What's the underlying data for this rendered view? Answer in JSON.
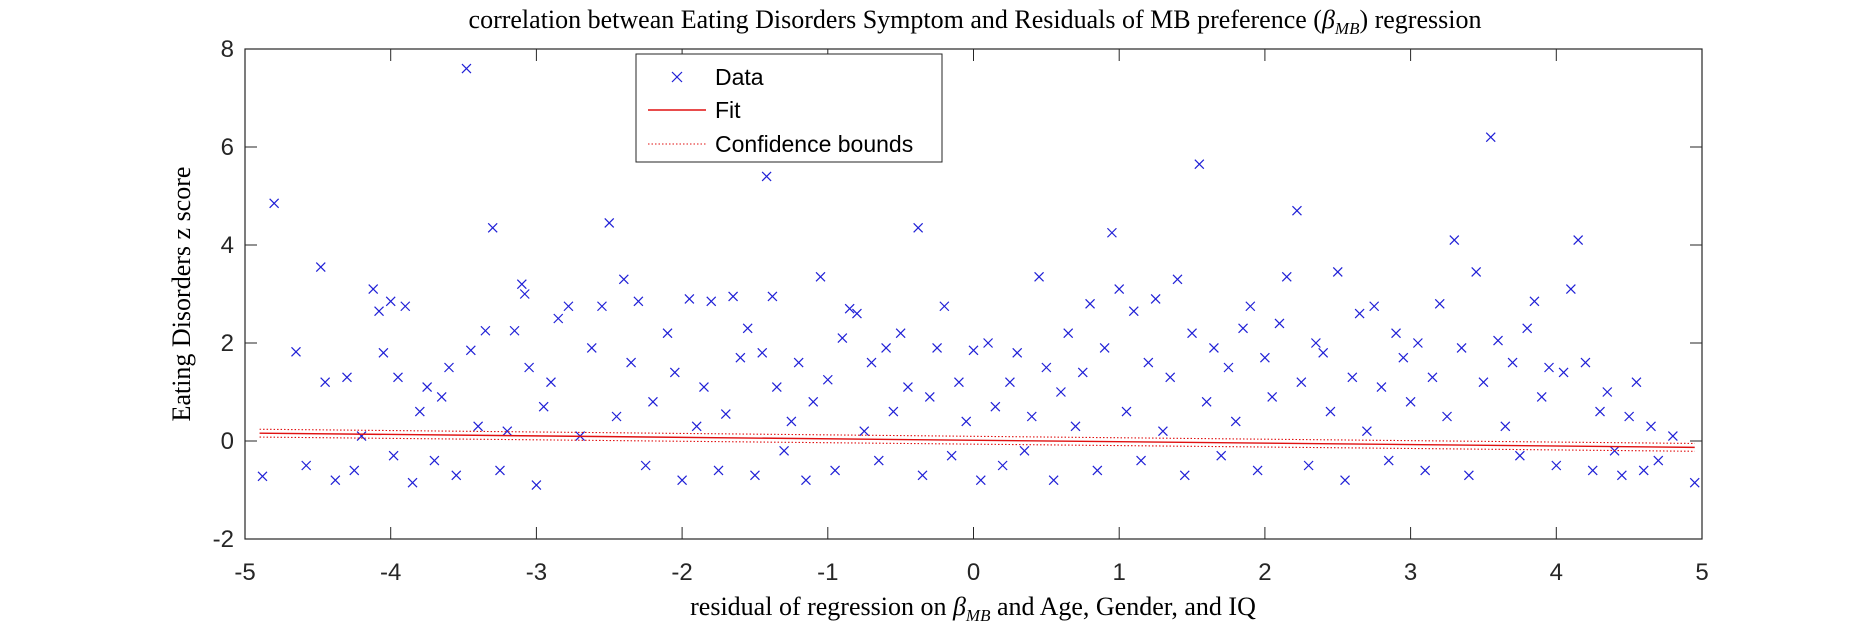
{
  "chart_data": {
    "type": "scatter",
    "title": "correlation betwean Eating Disorders Symptom and Residuals of MB preference (β_MB) regression",
    "title_parts": {
      "before": "correlation betwean Eating Disorders Symptom and Residuals of MB preference (",
      "symbol": "β",
      "subscript": "MB",
      "after": ") regression"
    },
    "xlabel": "residual of regression on β_MB and Age, Gender, and IQ",
    "xlabel_parts": {
      "before": "residual of regression on ",
      "symbol": "β",
      "subscript": "MB",
      "after": " and Age, Gender, and IQ"
    },
    "ylabel": "Eating Disorders z score",
    "xlim": [
      -5,
      5
    ],
    "ylim": [
      -2,
      8
    ],
    "xticks": [
      -5,
      -4,
      -3,
      -2,
      -1,
      0,
      1,
      2,
      3,
      4,
      5
    ],
    "yticks": [
      -2,
      0,
      2,
      4,
      6,
      8
    ],
    "grid": false,
    "legend_position": "top-center",
    "colors": {
      "data": "#1f1fd6",
      "fit": "#e01010",
      "bounds": "#e01010"
    },
    "series": [
      {
        "name": "Data",
        "marker": "x",
        "points": [
          [
            -4.88,
            -0.72
          ],
          [
            -4.8,
            4.85
          ],
          [
            -4.65,
            1.82
          ],
          [
            -4.58,
            -0.5
          ],
          [
            -4.48,
            3.55
          ],
          [
            -4.45,
            1.2
          ],
          [
            -4.38,
            -0.8
          ],
          [
            -4.3,
            1.3
          ],
          [
            -4.25,
            -0.6
          ],
          [
            -4.2,
            0.1
          ],
          [
            -4.12,
            3.1
          ],
          [
            -4.08,
            2.65
          ],
          [
            -4.05,
            1.8
          ],
          [
            -4.0,
            2.85
          ],
          [
            -3.98,
            -0.3
          ],
          [
            -3.95,
            1.3
          ],
          [
            -3.9,
            2.75
          ],
          [
            -3.85,
            -0.85
          ],
          [
            -3.8,
            0.6
          ],
          [
            -3.75,
            1.1
          ],
          [
            -3.7,
            -0.4
          ],
          [
            -3.65,
            0.9
          ],
          [
            -3.6,
            1.5
          ],
          [
            -3.55,
            -0.7
          ],
          [
            -3.48,
            7.6
          ],
          [
            -3.45,
            1.85
          ],
          [
            -3.4,
            0.3
          ],
          [
            -3.35,
            2.25
          ],
          [
            -3.3,
            4.35
          ],
          [
            -3.25,
            -0.6
          ],
          [
            -3.2,
            0.2
          ],
          [
            -3.15,
            2.25
          ],
          [
            -3.1,
            3.2
          ],
          [
            -3.08,
            3.0
          ],
          [
            -3.05,
            1.5
          ],
          [
            -3.0,
            -0.9
          ],
          [
            -2.95,
            0.7
          ],
          [
            -2.9,
            1.2
          ],
          [
            -2.85,
            2.5
          ],
          [
            -2.78,
            2.75
          ],
          [
            -2.7,
            0.1
          ],
          [
            -2.62,
            1.9
          ],
          [
            -2.55,
            2.75
          ],
          [
            -2.5,
            4.45
          ],
          [
            -2.45,
            0.5
          ],
          [
            -2.4,
            3.3
          ],
          [
            -2.35,
            1.6
          ],
          [
            -2.3,
            2.85
          ],
          [
            -2.25,
            -0.5
          ],
          [
            -2.2,
            0.8
          ],
          [
            -2.1,
            2.2
          ],
          [
            -2.05,
            1.4
          ],
          [
            -2.0,
            -0.8
          ],
          [
            -1.95,
            2.9
          ],
          [
            -1.9,
            0.3
          ],
          [
            -1.85,
            1.1
          ],
          [
            -1.8,
            2.85
          ],
          [
            -1.75,
            -0.6
          ],
          [
            -1.7,
            0.55
          ],
          [
            -1.65,
            2.95
          ],
          [
            -1.6,
            1.7
          ],
          [
            -1.55,
            2.3
          ],
          [
            -1.5,
            -0.7
          ],
          [
            -1.45,
            1.8
          ],
          [
            -1.42,
            5.4
          ],
          [
            -1.38,
            2.95
          ],
          [
            -1.35,
            1.1
          ],
          [
            -1.3,
            -0.2
          ],
          [
            -1.25,
            0.4
          ],
          [
            -1.2,
            1.6
          ],
          [
            -1.15,
            -0.8
          ],
          [
            -1.1,
            0.8
          ],
          [
            -1.05,
            3.35
          ],
          [
            -1.0,
            1.25
          ],
          [
            -0.95,
            -0.6
          ],
          [
            -0.9,
            2.1
          ],
          [
            -0.85,
            2.7
          ],
          [
            -0.8,
            2.6
          ],
          [
            -0.75,
            0.2
          ],
          [
            -0.7,
            1.6
          ],
          [
            -0.65,
            -0.4
          ],
          [
            -0.6,
            1.9
          ],
          [
            -0.55,
            0.6
          ],
          [
            -0.5,
            2.2
          ],
          [
            -0.45,
            1.1
          ],
          [
            -0.38,
            4.35
          ],
          [
            -0.35,
            -0.7
          ],
          [
            -0.3,
            0.9
          ],
          [
            -0.25,
            1.9
          ],
          [
            -0.2,
            2.75
          ],
          [
            -0.15,
            -0.3
          ],
          [
            -0.1,
            1.2
          ],
          [
            -0.05,
            0.4
          ],
          [
            0.0,
            1.85
          ],
          [
            0.05,
            -0.8
          ],
          [
            0.1,
            2.0
          ],
          [
            0.15,
            0.7
          ],
          [
            0.2,
            -0.5
          ],
          [
            0.25,
            1.2
          ],
          [
            0.3,
            1.8
          ],
          [
            0.35,
            -0.2
          ],
          [
            0.4,
            0.5
          ],
          [
            0.45,
            3.35
          ],
          [
            0.5,
            1.5
          ],
          [
            0.55,
            -0.8
          ],
          [
            0.6,
            1.0
          ],
          [
            0.65,
            2.2
          ],
          [
            0.7,
            0.3
          ],
          [
            0.75,
            1.4
          ],
          [
            0.8,
            2.8
          ],
          [
            0.85,
            -0.6
          ],
          [
            0.9,
            1.9
          ],
          [
            0.95,
            4.25
          ],
          [
            1.0,
            3.1
          ],
          [
            1.05,
            0.6
          ],
          [
            1.1,
            2.65
          ],
          [
            1.15,
            -0.4
          ],
          [
            1.2,
            1.6
          ],
          [
            1.25,
            2.9
          ],
          [
            1.3,
            0.2
          ],
          [
            1.35,
            1.3
          ],
          [
            1.4,
            3.3
          ],
          [
            1.45,
            -0.7
          ],
          [
            1.5,
            2.2
          ],
          [
            1.55,
            5.65
          ],
          [
            1.6,
            0.8
          ],
          [
            1.65,
            1.9
          ],
          [
            1.7,
            -0.3
          ],
          [
            1.75,
            1.5
          ],
          [
            1.8,
            0.4
          ],
          [
            1.85,
            2.3
          ],
          [
            1.9,
            2.75
          ],
          [
            1.95,
            -0.6
          ],
          [
            2.0,
            1.7
          ],
          [
            2.05,
            0.9
          ],
          [
            2.1,
            2.4
          ],
          [
            2.15,
            3.35
          ],
          [
            2.22,
            4.7
          ],
          [
            2.25,
            1.2
          ],
          [
            2.3,
            -0.5
          ],
          [
            2.35,
            2.0
          ],
          [
            2.4,
            1.8
          ],
          [
            2.45,
            0.6
          ],
          [
            2.5,
            3.45
          ],
          [
            2.55,
            -0.8
          ],
          [
            2.6,
            1.3
          ],
          [
            2.65,
            2.6
          ],
          [
            2.7,
            0.2
          ],
          [
            2.75,
            2.75
          ],
          [
            2.8,
            1.1
          ],
          [
            2.85,
            -0.4
          ],
          [
            2.9,
            2.2
          ],
          [
            2.95,
            1.7
          ],
          [
            3.0,
            0.8
          ],
          [
            3.05,
            2.0
          ],
          [
            3.1,
            -0.6
          ],
          [
            3.15,
            1.3
          ],
          [
            3.2,
            2.8
          ],
          [
            3.25,
            0.5
          ],
          [
            3.3,
            4.1
          ],
          [
            3.35,
            1.9
          ],
          [
            3.4,
            -0.7
          ],
          [
            3.45,
            3.45
          ],
          [
            3.5,
            1.2
          ],
          [
            3.55,
            6.2
          ],
          [
            3.6,
            2.05
          ],
          [
            3.65,
            0.3
          ],
          [
            3.7,
            1.6
          ],
          [
            3.75,
            -0.3
          ],
          [
            3.8,
            2.3
          ],
          [
            3.85,
            2.85
          ],
          [
            3.9,
            0.9
          ],
          [
            3.95,
            1.5
          ],
          [
            4.0,
            -0.5
          ],
          [
            4.05,
            1.4
          ],
          [
            4.1,
            3.1
          ],
          [
            4.15,
            4.1
          ],
          [
            4.2,
            1.6
          ],
          [
            4.25,
            -0.6
          ],
          [
            4.3,
            0.6
          ],
          [
            4.35,
            1.0
          ],
          [
            4.4,
            -0.2
          ],
          [
            4.45,
            -0.7
          ],
          [
            4.5,
            0.5
          ],
          [
            4.55,
            1.2
          ],
          [
            4.6,
            -0.6
          ],
          [
            4.65,
            0.3
          ],
          [
            4.7,
            -0.4
          ],
          [
            4.8,
            0.1
          ],
          [
            4.95,
            -0.85
          ]
        ]
      },
      {
        "name": "Fit",
        "line": [
          [
            -4.9,
            0.16
          ],
          [
            4.95,
            -0.13
          ]
        ]
      },
      {
        "name": "Confidence bounds",
        "upper": [
          [
            -4.9,
            0.24
          ],
          [
            4.95,
            -0.05
          ]
        ],
        "lower": [
          [
            -4.9,
            0.08
          ],
          [
            4.95,
            -0.21
          ]
        ]
      }
    ]
  }
}
